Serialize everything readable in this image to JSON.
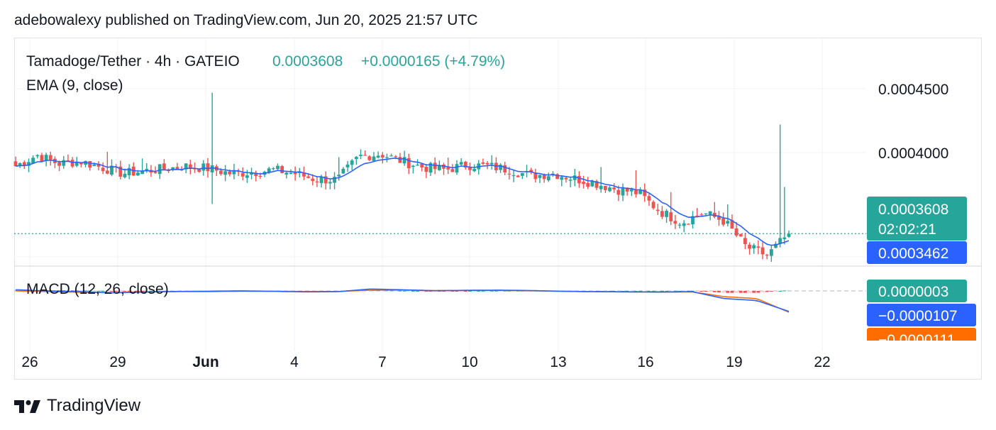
{
  "header": {
    "published": "adebowalexy published on TradingView.com, Jun 20, 2025 21:57 UTC"
  },
  "legend": {
    "symbol": "Tamadoge/Tether · 4h · GATEIO",
    "last": "0.0003608",
    "change": "+0.0000165 (+4.79%)",
    "ema": "EMA (9, close)",
    "macd": "MACD (12, 26, close)"
  },
  "footer": {
    "brand": "TradingView",
    "logo_icon": "tradingview-logo-icon"
  },
  "colors": {
    "up": "#26a69a",
    "down": "#ef5350",
    "ema": "#2962ff",
    "signal": "#ff6d00",
    "accent": "#26a69a"
  },
  "chart_data": [
    {
      "type": "candlestick",
      "title": "Tamadoge/Tether · 4h · GATEIO",
      "x_tick_labels": [
        "26",
        "29",
        "Jun",
        "4",
        "7",
        "10",
        "13",
        "16",
        "19",
        "22"
      ],
      "y_tick_labels": [
        "0.0004500",
        "0.0004000"
      ],
      "ylim": [
        0.000336,
        0.000517
      ],
      "last_price": 0.0003608,
      "last_price_label": "0.0003608",
      "countdown": "02:02:21",
      "ema_value_label": "0.0003462",
      "closes_sampled": [
        0.000416,
        0.000425,
        0.000418,
        0.00042,
        0.000415,
        0.00041,
        0.000412,
        0.000414,
        0.000416,
        0.000414,
        0.00041,
        0.000411,
        0.000413,
        0.00041,
        0.000405,
        0.000405,
        0.000424,
        0.000426,
        0.00042,
        0.000415,
        0.000413,
        0.000417,
        0.000416,
        0.000413,
        0.000408,
        0.00041,
        0.000406,
        0.000402,
        0.000397,
        0.000394,
        0.000379,
        0.00037,
        0.000378,
        0.000371,
        0.00035,
        0.000343,
        0.000361
      ],
      "series": [
        {
          "name": "EMA (9, close)"
        }
      ]
    },
    {
      "type": "macd",
      "title": "MACD (12, 26, close)",
      "histogram_label": "0.0000003",
      "macd_label": "−0.0000107",
      "signal_label": "−0.0000111",
      "macd_sampled": [
        6e-07,
        0.0,
        -4e-07,
        -1e-06,
        -6e-07,
        -3e-07,
        -3e-07,
        -1e-07,
        -2e-07,
        -5e-07,
        -4e-07,
        1e-06,
        6e-07,
        1e-07,
        3e-07,
        4e-07,
        2e-07,
        -2e-07,
        -4e-07,
        -5e-07,
        -6e-07,
        -4e-07,
        -4e-06,
        -5e-06,
        -1.07e-05
      ],
      "signal_sampled": [
        0.0,
        -3e-07,
        -7e-07,
        -9e-07,
        -6e-07,
        -3e-07,
        -1e-07,
        1e-07,
        -2e-07,
        -3e-07,
        -3e-07,
        4e-07,
        5e-07,
        2e-07,
        3e-07,
        3e-07,
        1e-07,
        -2e-07,
        -4e-07,
        -5e-07,
        -6e-07,
        -5e-07,
        -3e-06,
        -4e-06,
        -1.11e-05
      ]
    }
  ]
}
